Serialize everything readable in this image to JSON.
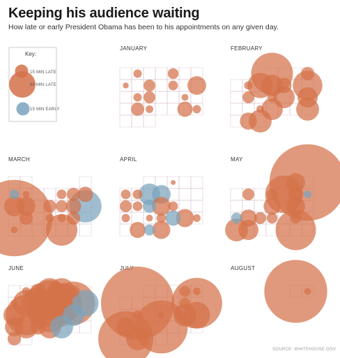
{
  "title": "Keeping his audience waiting",
  "subtitle": "How late or early President Obama has been to his appointments on any given day.",
  "source": "SOURCE: WHITEHOUSE.GOV",
  "colors": {
    "late": "#d4714a",
    "early": "#7aa3bd",
    "grid": "#c9a8b8"
  },
  "key": {
    "title": "Key:",
    "items": [
      {
        "label": "15 MIN LATE",
        "minutes": 15,
        "kind": "late"
      },
      {
        "label": "60 MIN LATE",
        "minutes": 60,
        "kind": "late"
      },
      {
        "label": "15 MIN EARLY",
        "minutes": 15,
        "kind": "early"
      }
    ]
  },
  "chart_data": {
    "type": "calendar bubble",
    "title": "Keeping his audience waiting",
    "legend": "top-left",
    "size_encodes": "minutes late or early",
    "months": [
      {
        "name": "JANUARY",
        "offset": 0,
        "days": 31,
        "points": [
          {
            "d": 2,
            "m": 6
          },
          {
            "d": 5,
            "m": 10
          },
          {
            "d": 8,
            "m": 3
          },
          {
            "d": 10,
            "m": 12
          },
          {
            "d": 12,
            "m": 8
          },
          {
            "d": 14,
            "m": 30
          },
          {
            "d": 16,
            "m": 6
          },
          {
            "d": 17,
            "m": 12
          },
          {
            "d": 20,
            "m": 4
          },
          {
            "d": 23,
            "m": 15
          },
          {
            "d": 24,
            "m": 5
          },
          {
            "d": 27,
            "m": 20
          },
          {
            "d": 28,
            "m": 6
          }
        ]
      },
      {
        "name": "FEBRUARY",
        "offset": 3,
        "days": 28,
        "points": [
          {
            "d": 1,
            "m": 150
          },
          {
            "d": 4,
            "m": 15
          },
          {
            "d": 6,
            "m": 6
          },
          {
            "d": 7,
            "m": 55
          },
          {
            "d": 8,
            "m": 40
          },
          {
            "d": 9,
            "m": 20
          },
          {
            "d": 11,
            "m": 75
          },
          {
            "d": 13,
            "m": 12
          },
          {
            "d": 15,
            "m": 8
          },
          {
            "d": 16,
            "m": 40
          },
          {
            "d": 18,
            "m": 35
          },
          {
            "d": 21,
            "m": 5
          },
          {
            "d": 22,
            "m": 40
          },
          {
            "d": 25,
            "m": 45
          },
          {
            "d": 27,
            "m": 25
          },
          {
            "d": 28,
            "m": 45
          }
        ]
      },
      {
        "name": "MARCH",
        "offset": 6,
        "days": 31,
        "points": [
          {
            "d": 2,
            "m": -8
          },
          {
            "d": 3,
            "m": 4
          },
          {
            "d": 6,
            "m": 8
          },
          {
            "d": 7,
            "m": 15
          },
          {
            "d": 8,
            "m": 20
          },
          {
            "d": 9,
            "m": 35
          },
          {
            "d": 10,
            "m": 30
          },
          {
            "d": 12,
            "m": 14
          },
          {
            "d": 13,
            "m": 12
          },
          {
            "d": 14,
            "m": 20
          },
          {
            "d": 15,
            "m": -90
          },
          {
            "d": 16,
            "m": 500
          },
          {
            "d": 17,
            "m": 15
          },
          {
            "d": 19,
            "m": 6
          },
          {
            "d": 20,
            "m": 6
          },
          {
            "d": 21,
            "m": 15
          },
          {
            "d": 23,
            "m": 4
          },
          {
            "d": 27,
            "m": 85
          }
        ]
      },
      {
        "name": "APRIL",
        "offset": 2,
        "days": 30,
        "points": [
          {
            "d": 3,
            "m": 2
          },
          {
            "d": 6,
            "m": 8
          },
          {
            "d": 7,
            "m": 8
          },
          {
            "d": 8,
            "m": -40
          },
          {
            "d": 9,
            "m": -30
          },
          {
            "d": 13,
            "m": 12
          },
          {
            "d": 14,
            "m": 8
          },
          {
            "d": 15,
            "m": -15
          },
          {
            "d": 16,
            "m": 30
          },
          {
            "d": 17,
            "m": 8
          },
          {
            "d": 20,
            "m": 6
          },
          {
            "d": 22,
            "m": 4
          },
          {
            "d": 23,
            "m": 8
          },
          {
            "d": 24,
            "m": -20
          },
          {
            "d": 25,
            "m": 28
          },
          {
            "d": 26,
            "m": 5
          },
          {
            "d": 28,
            "m": 22
          },
          {
            "d": 29,
            "m": -10
          },
          {
            "d": 30,
            "m": 28
          }
        ]
      },
      {
        "name": "MAY",
        "offset": 4,
        "days": 31,
        "points": [
          {
            "d": 2,
            "m": 30
          },
          {
            "d": 3,
            "m": 500
          },
          {
            "d": 5,
            "m": 12
          },
          {
            "d": 7,
            "m": 10
          },
          {
            "d": 8,
            "m": 120
          },
          {
            "d": 9,
            "m": 20
          },
          {
            "d": 10,
            "m": -5
          },
          {
            "d": 14,
            "m": 25
          },
          {
            "d": 16,
            "m": 30
          },
          {
            "d": 18,
            "m": -10
          },
          {
            "d": 19,
            "m": 25
          },
          {
            "d": 20,
            "m": 12
          },
          {
            "d": 21,
            "m": 10
          },
          {
            "d": 23,
            "m": 10
          },
          {
            "d": 25,
            "m": 45
          },
          {
            "d": 26,
            "m": 35
          },
          {
            "d": 30,
            "m": 140
          }
        ]
      },
      {
        "name": "JUNE",
        "offset": 0,
        "days": 30,
        "points": [
          {
            "d": 2,
            "m": 6
          },
          {
            "d": 3,
            "m": 20
          },
          {
            "d": 4,
            "m": 60
          },
          {
            "d": 5,
            "m": 60
          },
          {
            "d": 6,
            "m": 12
          },
          {
            "d": 8,
            "m": 4
          },
          {
            "d": 9,
            "m": 60
          },
          {
            "d": 10,
            "m": 90
          },
          {
            "d": 11,
            "m": 180
          },
          {
            "d": 12,
            "m": 140
          },
          {
            "d": 13,
            "m": 160
          },
          {
            "d": 14,
            "m": -60
          },
          {
            "d": 15,
            "m": 40
          },
          {
            "d": 16,
            "m": 140
          },
          {
            "d": 17,
            "m": 30
          },
          {
            "d": 18,
            "m": 100
          },
          {
            "d": 19,
            "m": 45
          },
          {
            "d": 20,
            "m": -40
          },
          {
            "d": 22,
            "m": 30
          },
          {
            "d": 23,
            "m": 45
          },
          {
            "d": 24,
            "m": 20
          },
          {
            "d": 25,
            "m": 45
          },
          {
            "d": 26,
            "m": -45
          },
          {
            "d": 29,
            "m": 15
          }
        ]
      },
      {
        "name": "JULY",
        "offset": 2,
        "days": 31,
        "points": [
          {
            "d": 4,
            "m": 10
          },
          {
            "d": 5,
            "m": 5
          },
          {
            "d": 7,
            "m": 460
          },
          {
            "d": 11,
            "m": 10
          },
          {
            "d": 12,
            "m": 220
          },
          {
            "d": 14,
            "m": 8
          },
          {
            "d": 16,
            "m": 4
          },
          {
            "d": 18,
            "m": 45
          },
          {
            "d": 19,
            "m": 60
          },
          {
            "d": 20,
            "m": 30
          },
          {
            "d": 23,
            "m": 240
          },
          {
            "d": 27,
            "m": 260
          },
          {
            "d": 28,
            "m": 45
          }
        ]
      },
      {
        "name": "AUGUST",
        "offset": 5,
        "days": 2,
        "points": [
          {
            "d": 1,
            "m": 340
          },
          {
            "d": 2,
            "m": 4
          }
        ]
      }
    ]
  }
}
